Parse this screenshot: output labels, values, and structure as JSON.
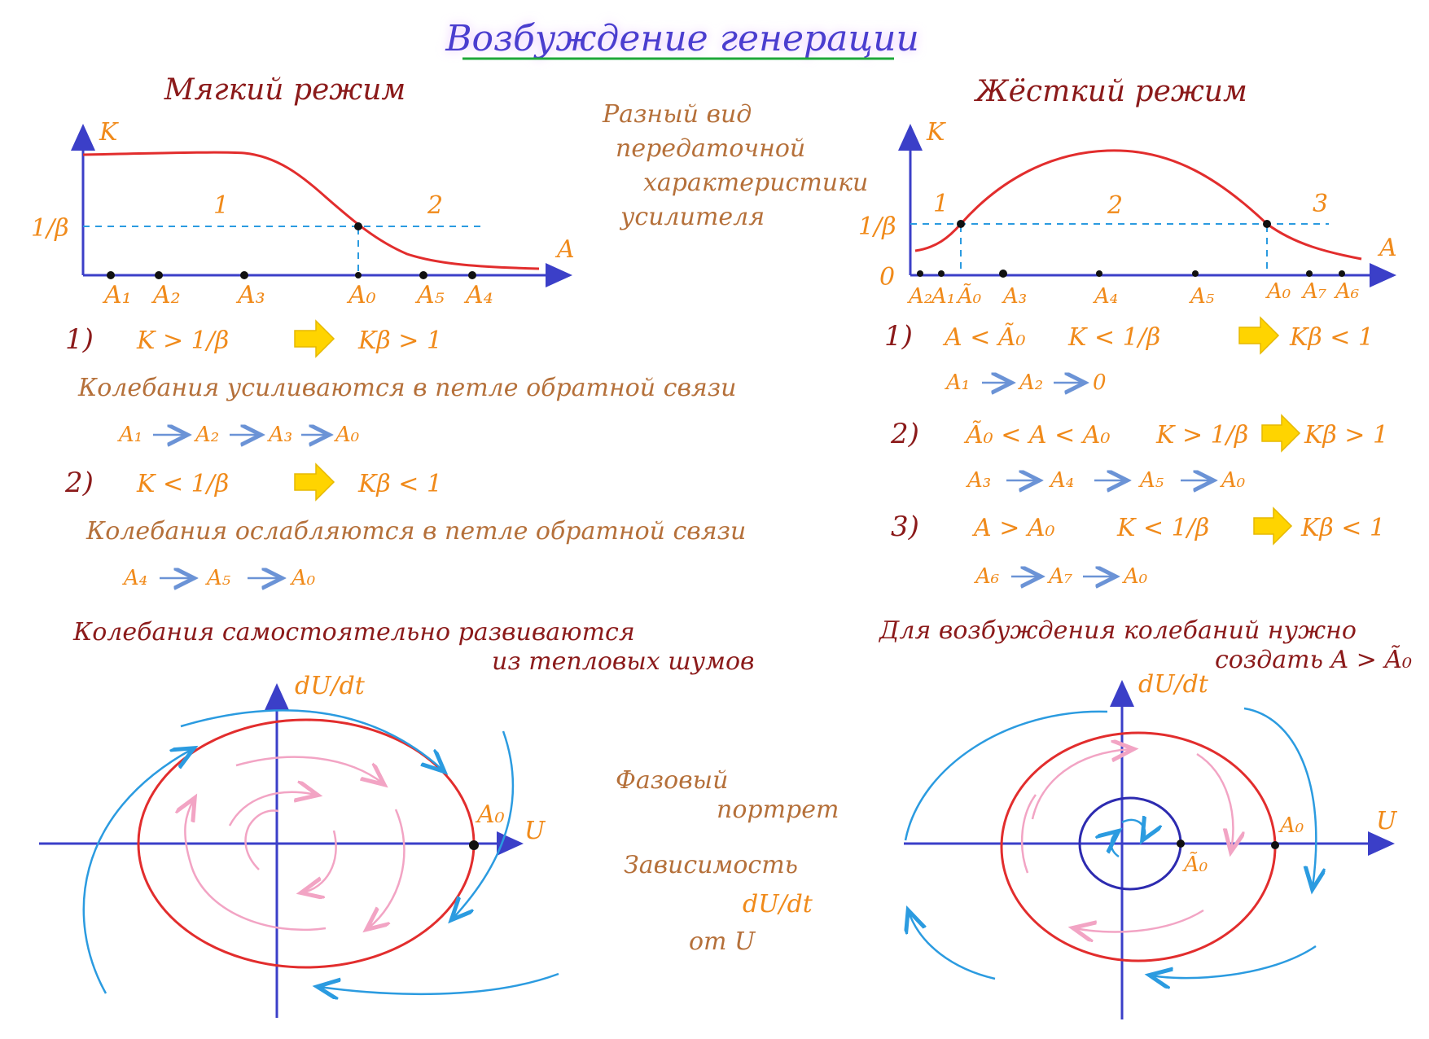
{
  "title": "Возбуждение генерации",
  "soft": {
    "heading": "Мягкий режим",
    "axis_y": "K",
    "axis_x": "A",
    "beta_label": "1/β",
    "regions": [
      "1",
      "2"
    ],
    "points": [
      "A₁",
      "A₂",
      "A₃",
      "A₀",
      "A₅",
      "A₄"
    ],
    "case1": {
      "num": "1)",
      "cond": "K > 1/β",
      "result": "Kβ > 1",
      "text": "Колебания усиливаются в петле обратной связи",
      "chain": [
        "A₁",
        "A₂",
        "A₃",
        "A₀"
      ]
    },
    "case2": {
      "num": "2)",
      "cond": "K < 1/β",
      "result": "Kβ < 1",
      "text": "Колебания ослабляются в петле обратной связи",
      "chain": [
        "A₄",
        "A₅",
        "A₀"
      ]
    },
    "summary_line1": "Колебания самостоятельно развиваются",
    "summary_line2": "из тепловых шумов",
    "phase_y": "dU/dt",
    "phase_x": "U",
    "phase_point": "A₀"
  },
  "middle": {
    "note1": [
      "Разный вид",
      "передаточной",
      "характеристики",
      "усилителя"
    ],
    "note2": [
      "Фазовый",
      "портрет"
    ],
    "note3": [
      "Зависимость",
      "dU/dt",
      "от U"
    ]
  },
  "hard": {
    "heading": "Жёсткий режим",
    "axis_y": "K",
    "axis_x": "A",
    "origin": "0",
    "beta_label": "1/β",
    "regions": [
      "1",
      "2",
      "3"
    ],
    "points": [
      "A₂",
      "A₁",
      "Ã₀",
      "A₃",
      "A₄",
      "A₅",
      "A₀",
      "A₇",
      "A₆"
    ],
    "case1": {
      "num": "1)",
      "range": "A < Ã₀",
      "cond": "K < 1/β",
      "result": "Kβ < 1",
      "chain": [
        "A₁",
        "A₂",
        "0"
      ]
    },
    "case2": {
      "num": "2)",
      "range": "Ã₀ < A < A₀",
      "cond": "K > 1/β",
      "result": "Kβ > 1",
      "chain": [
        "A₃",
        "A₄",
        "A₅",
        "A₀"
      ]
    },
    "case3": {
      "num": "3)",
      "range": "A > A₀",
      "cond": "K < 1/β",
      "result": "Kβ < 1",
      "chain": [
        "A₆",
        "A₇",
        "A₀"
      ]
    },
    "summary_line1": "Для возбуждения колебаний нужно",
    "summary_line2": "создать A > Ã₀",
    "phase_y": "dU/dt",
    "phase_x": "U",
    "phase_point_outer": "A₀",
    "phase_point_inner": "Ã₀"
  },
  "colors": {
    "title": "#4a3ecf",
    "heading": "#8b1a1a",
    "note": "#b5703a",
    "accent": "#f08a1a",
    "axis": "#3b3fc8",
    "curve": "#e22d2d",
    "flow": "#2b9be0",
    "inner_flow": "#f2a4c4",
    "arrow": "#ffd400"
  }
}
